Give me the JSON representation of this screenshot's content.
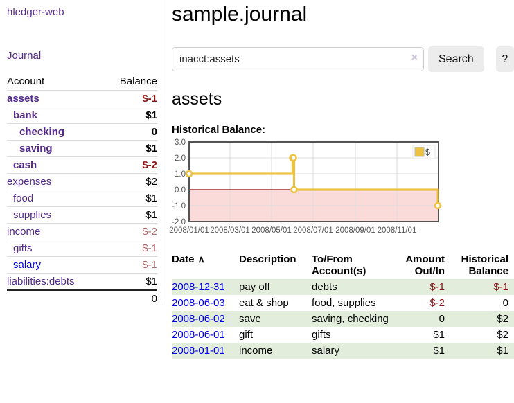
{
  "app": {
    "title": "hledger-web"
  },
  "sidebar": {
    "journal_link": "Journal",
    "accounts_table": {
      "headers": [
        "Account",
        "Balance"
      ],
      "rows": [
        {
          "account": "assets",
          "depth": 1,
          "bold": true,
          "balance": "$-1",
          "negative": "strong"
        },
        {
          "account": "bank",
          "depth": 2,
          "bold": true,
          "balance": "$1"
        },
        {
          "account": "checking",
          "depth": 3,
          "bold": true,
          "balance": "0"
        },
        {
          "account": "saving",
          "depth": 3,
          "bold": true,
          "balance": "$1"
        },
        {
          "account": "cash",
          "depth": 2,
          "bold": true,
          "balance": "$-2",
          "negative": "strong"
        },
        {
          "account": "expenses",
          "depth": 1,
          "bold": false,
          "balance": "$2"
        },
        {
          "account": "food",
          "depth": 2,
          "bold": false,
          "balance": "$1"
        },
        {
          "account": "supplies",
          "depth": 2,
          "bold": false,
          "balance": "$1"
        },
        {
          "account": "income",
          "depth": 1,
          "bold": false,
          "balance": "$-2",
          "negative": "soft"
        },
        {
          "account": "gifts",
          "depth": 2,
          "bold": false,
          "balance": "$-1",
          "negative": "soft"
        },
        {
          "account": "salary",
          "depth": 2,
          "bold": false,
          "balance": "$-1",
          "negative": "soft",
          "unvisited": true
        },
        {
          "account": "liabilities:debts",
          "depth": 1,
          "bold": false,
          "balance": "$1"
        }
      ],
      "total": "0"
    }
  },
  "main": {
    "title": "sample.journal",
    "search": {
      "value": "inacct:assets",
      "clear_icon": "×",
      "button": "Search",
      "help_button": "?"
    },
    "account_heading": "assets"
  },
  "chart_data": {
    "type": "line",
    "step": true,
    "title": "Historical Balance:",
    "series": [
      {
        "name": "$",
        "points": [
          {
            "date": "2008-01-01",
            "value": 1
          },
          {
            "date": "2008-06-01",
            "value": 2
          },
          {
            "date": "2008-06-02",
            "value": 2
          },
          {
            "date": "2008-06-03",
            "value": 0
          },
          {
            "date": "2008-12-31",
            "value": -1
          }
        ]
      }
    ],
    "x_range": [
      "2008-01-01",
      "2009-01-01"
    ],
    "x_ticks": [
      {
        "date": "2008-01-01",
        "label": "2008/01/01"
      },
      {
        "date": "2008-03-01",
        "label": "2008/03/01"
      },
      {
        "date": "2008-05-01",
        "label": "2008/05/01"
      },
      {
        "date": "2008-07-01",
        "label": "2008/07/01"
      },
      {
        "date": "2008-09-01",
        "label": "2008/09/01"
      },
      {
        "date": "2008-11-01",
        "label": "2008/11/01"
      }
    ],
    "y_ticks": [
      3.0,
      2.0,
      1.0,
      0.0,
      -1.0,
      -2.0
    ],
    "ylim": [
      -2,
      3
    ],
    "grid": true,
    "legend": {
      "position": "top-right",
      "label": "$",
      "swatch_color": "#edc240"
    },
    "line_color": "#edc240",
    "zero_line_color": "#8b0000",
    "negative_region_color": "#fbdada",
    "axis_color": "#545454"
  },
  "transactions": {
    "headers": [
      "Date",
      "Description",
      "To/From Account(s)",
      "Amount Out/In",
      "Historical Balance"
    ],
    "sorted_by": "Date",
    "sort_icon": "∧",
    "rows": [
      {
        "date": "2008-12-31",
        "description": "pay off",
        "accounts": "debts",
        "amount": "$-1",
        "amount_negative": true,
        "balance": "$-1",
        "balance_negative": true,
        "shaded": true
      },
      {
        "date": "2008-06-03",
        "description": "eat & shop",
        "accounts": "food, supplies",
        "amount": "$-2",
        "amount_negative": true,
        "balance": "0",
        "balance_negative": false,
        "shaded": false
      },
      {
        "date": "2008-06-02",
        "description": "save",
        "accounts": "saving, checking",
        "amount": "0",
        "amount_negative": false,
        "balance": "$2",
        "balance_negative": false,
        "shaded": true
      },
      {
        "date": "2008-06-01",
        "description": "gift",
        "accounts": "gifts",
        "amount": "$1",
        "amount_negative": false,
        "balance": "$2",
        "balance_negative": false,
        "shaded": false
      },
      {
        "date": "2008-01-01",
        "description": "income",
        "accounts": "salary",
        "amount": "$1",
        "amount_negative": false,
        "balance": "$1",
        "balance_negative": false,
        "shaded": true
      }
    ]
  }
}
